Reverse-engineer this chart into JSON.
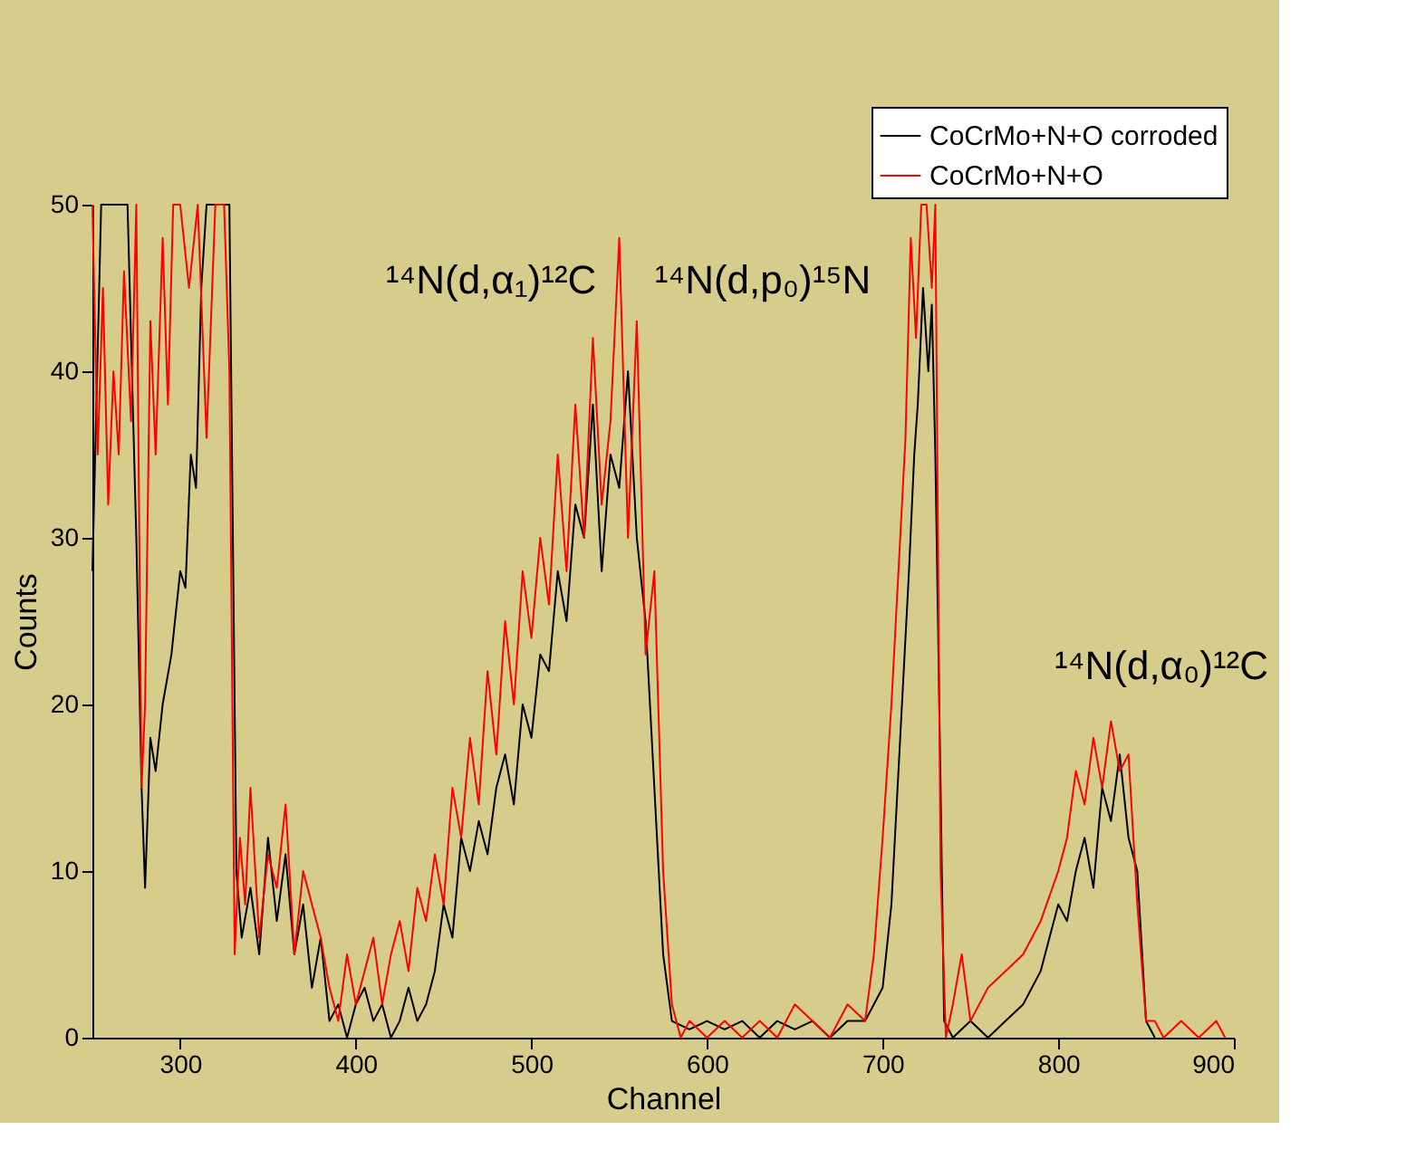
{
  "chart_data": {
    "type": "line",
    "xlabel": "Channel",
    "ylabel": "Counts",
    "xlim": [
      250,
      900
    ],
    "ylim": [
      0,
      50
    ],
    "xticks": [
      300,
      400,
      500,
      600,
      700,
      800,
      900
    ],
    "yticks": [
      0,
      10,
      20,
      30,
      40,
      50
    ],
    "grid": false,
    "legend": "top right",
    "line_style": "solid",
    "marker": "none",
    "annotations": [
      "¹⁴N(d,α₁)¹²C",
      "¹⁴N(d,p₀)¹⁵N",
      "¹⁴N(d,α₀)¹²C"
    ],
    "series": [
      {
        "name": "CoCrMo+N+O corroded",
        "color": "#000000",
        "x": [
          250,
          255,
          260,
          270,
          275,
          278,
          280,
          283,
          286,
          290,
          295,
          300,
          303,
          306,
          309,
          312,
          315,
          320,
          325,
          328,
          330,
          332,
          335,
          340,
          345,
          350,
          355,
          360,
          365,
          370,
          375,
          380,
          385,
          390,
          395,
          400,
          405,
          410,
          415,
          420,
          425,
          430,
          435,
          440,
          445,
          450,
          455,
          460,
          465,
          470,
          475,
          480,
          485,
          490,
          495,
          500,
          505,
          510,
          515,
          520,
          525,
          530,
          535,
          540,
          545,
          550,
          555,
          560,
          565,
          570,
          575,
          580,
          590,
          600,
          610,
          620,
          630,
          640,
          650,
          660,
          670,
          680,
          690,
          695,
          700,
          705,
          710,
          715,
          718,
          720,
          723,
          726,
          728,
          730,
          733,
          735,
          740,
          750,
          760,
          770,
          780,
          790,
          795,
          800,
          805,
          810,
          815,
          820,
          825,
          830,
          835,
          840,
          845,
          850,
          855
        ],
        "values": [
          28,
          50,
          50,
          50,
          30,
          15,
          9,
          18,
          16,
          20,
          23,
          28,
          27,
          35,
          33,
          45,
          50,
          50,
          50,
          50,
          30,
          10,
          6,
          9,
          5,
          12,
          7,
          11,
          5,
          8,
          3,
          6,
          1,
          2,
          0,
          2,
          3,
          1,
          2,
          0,
          1,
          3,
          1,
          2,
          4,
          8,
          6,
          12,
          10,
          13,
          11,
          15,
          17,
          14,
          20,
          18,
          23,
          22,
          28,
          25,
          32,
          30,
          38,
          28,
          35,
          33,
          40,
          30,
          25,
          15,
          5,
          1,
          0.5,
          1,
          0.5,
          1,
          0,
          1,
          0.5,
          1,
          0,
          1,
          1,
          2,
          3,
          8,
          18,
          28,
          35,
          38,
          45,
          40,
          44,
          35,
          15,
          1,
          0,
          1,
          0,
          1,
          2,
          4,
          6,
          8,
          7,
          10,
          12,
          9,
          15,
          13,
          17,
          12,
          10,
          1,
          0
        ]
      },
      {
        "name": "CoCrMo+N+O",
        "color": "#ff0000",
        "x": [
          250,
          253,
          256,
          259,
          262,
          265,
          268,
          272,
          275,
          278,
          280,
          283,
          286,
          290,
          293,
          296,
          300,
          305,
          310,
          315,
          320,
          325,
          328,
          331,
          334,
          337,
          340,
          345,
          350,
          355,
          360,
          365,
          370,
          375,
          380,
          385,
          390,
          395,
          400,
          405,
          410,
          415,
          420,
          425,
          430,
          435,
          440,
          445,
          450,
          455,
          460,
          465,
          470,
          475,
          480,
          485,
          490,
          495,
          500,
          505,
          510,
          515,
          520,
          525,
          530,
          535,
          540,
          545,
          550,
          555,
          560,
          565,
          570,
          575,
          580,
          585,
          590,
          600,
          610,
          620,
          630,
          640,
          650,
          660,
          670,
          680,
          690,
          695,
          700,
          705,
          710,
          713,
          716,
          719,
          722,
          725,
          728,
          730,
          733,
          736,
          740,
          745,
          750,
          760,
          770,
          780,
          790,
          800,
          805,
          810,
          815,
          820,
          825,
          830,
          835,
          840,
          845,
          850,
          855,
          860,
          870,
          880,
          890,
          895
        ],
        "values": [
          50,
          35,
          45,
          32,
          40,
          35,
          46,
          37,
          50,
          15,
          20,
          43,
          35,
          48,
          38,
          50,
          50,
          45,
          50,
          36,
          50,
          50,
          40,
          5,
          12,
          8,
          15,
          6,
          11,
          9,
          14,
          5,
          10,
          8,
          6,
          3,
          1,
          5,
          2,
          4,
          6,
          2,
          5,
          7,
          4,
          9,
          7,
          11,
          8,
          15,
          12,
          18,
          14,
          22,
          17,
          25,
          20,
          28,
          24,
          30,
          26,
          35,
          28,
          38,
          30,
          42,
          32,
          37,
          48,
          30,
          43,
          23,
          28,
          10,
          2,
          0,
          1,
          0,
          1,
          0,
          1,
          0,
          2,
          1,
          0,
          2,
          1,
          5,
          12,
          20,
          30,
          36,
          48,
          42,
          50,
          50,
          45,
          50,
          10,
          0,
          2,
          5,
          1,
          3,
          4,
          5,
          7,
          10,
          12,
          16,
          14,
          18,
          15,
          19,
          16,
          17,
          8,
          1,
          1,
          0,
          1,
          0,
          1,
          0
        ]
      }
    ]
  }
}
